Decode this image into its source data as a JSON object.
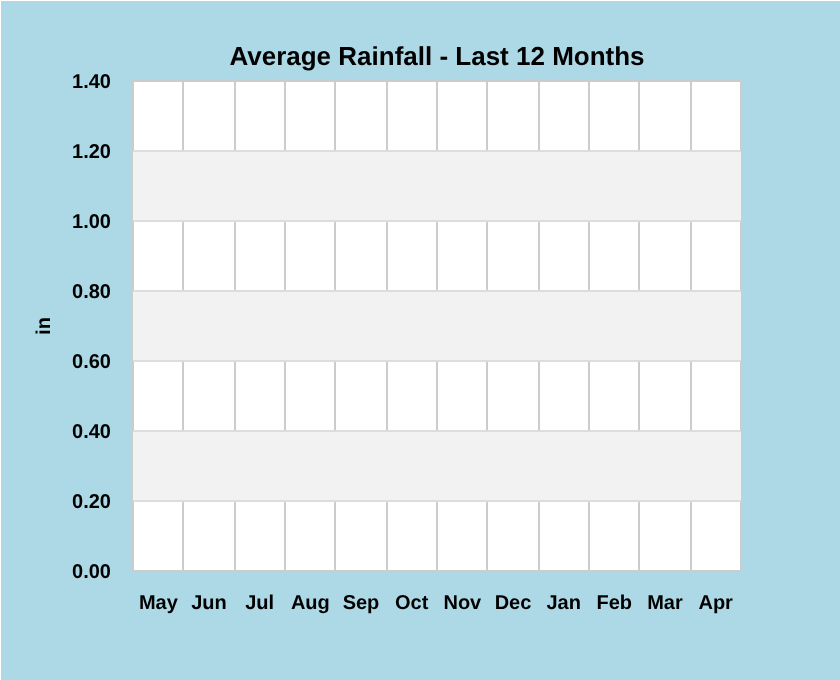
{
  "chart_data": {
    "type": "bar",
    "title": "Average Rainfall - Last 12 Months",
    "ylabel": "in",
    "categories": [
      "May",
      "Jun",
      "Jul",
      "Aug",
      "Sep",
      "Oct",
      "Nov",
      "Dec",
      "Jan",
      "Feb",
      "Mar",
      "Apr"
    ],
    "values": [
      null,
      null,
      null,
      null,
      null,
      null,
      null,
      null,
      null,
      null,
      null,
      null
    ],
    "ylim": [
      0,
      1.4
    ],
    "yticks": [
      {
        "value": 0,
        "label": "0.00"
      },
      {
        "value": 0.2,
        "label": "0.20"
      },
      {
        "value": 0.4,
        "label": "0.40"
      },
      {
        "value": 0.6,
        "label": "0.60"
      },
      {
        "value": 0.8,
        "label": "0.80"
      },
      {
        "value": 1.0,
        "label": "1.00"
      },
      {
        "value": 1.2,
        "label": "1.20"
      },
      {
        "value": 1.4,
        "label": "1.40"
      }
    ],
    "grid": true
  }
}
